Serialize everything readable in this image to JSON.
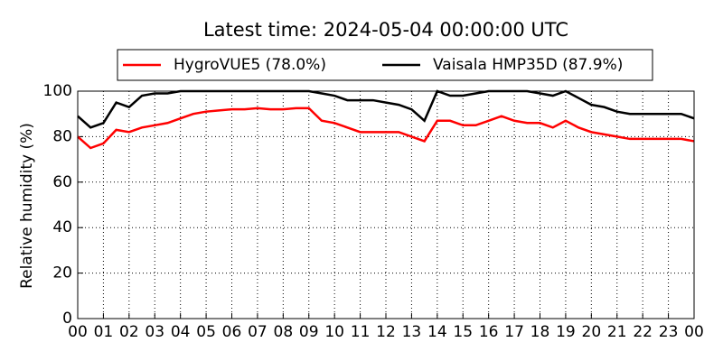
{
  "chart_data": {
    "type": "line",
    "title": "Latest time: 2024-05-04 00:00:00 UTC",
    "y_label": "Relative humidity (%)",
    "x": [
      0,
      0.5,
      1,
      1.5,
      2,
      2.5,
      3,
      3.5,
      4,
      4.5,
      5,
      5.5,
      6,
      6.5,
      7,
      7.5,
      8,
      8.5,
      9,
      9.5,
      10,
      10.5,
      11,
      11.5,
      12,
      12.5,
      13,
      13.5,
      14,
      14.5,
      15,
      15.5,
      16,
      16.5,
      17,
      17.5,
      18,
      18.5,
      19,
      19.5,
      20,
      20.5,
      21,
      21.5,
      22,
      22.5,
      23,
      23.5,
      24
    ],
    "series": [
      {
        "name": "HygroVUE5 (78.0%)",
        "color": "#ff0000",
        "values": [
          80,
          75,
          77,
          83,
          82,
          84,
          85,
          86,
          88,
          90,
          91,
          91.5,
          92,
          92,
          92.5,
          92,
          92,
          92.5,
          92.5,
          87,
          86,
          84,
          82,
          82,
          82,
          82,
          80,
          78,
          87,
          87,
          85,
          85,
          87,
          89,
          87,
          86,
          86,
          84,
          87,
          84,
          82,
          81,
          80,
          79,
          79,
          79,
          79,
          79,
          78
        ]
      },
      {
        "name": "Vaisala HMP35D (87.9%)",
        "color": "#000000",
        "values": [
          89,
          84,
          86,
          95,
          93,
          98,
          99,
          99,
          100,
          100,
          100,
          100,
          100,
          100,
          100,
          100,
          100,
          100,
          100,
          99,
          98,
          96,
          96,
          96,
          95,
          94,
          92,
          87,
          100,
          98,
          98,
          99,
          100,
          100,
          100,
          100,
          99,
          98,
          100,
          97,
          94,
          93,
          91,
          90,
          90,
          90,
          90,
          90,
          88
        ]
      }
    ],
    "xlim": [
      0,
      24
    ],
    "xticks": [
      {
        "value": 0,
        "label": "00"
      },
      {
        "value": 1,
        "label": "01"
      },
      {
        "value": 2,
        "label": "02"
      },
      {
        "value": 3,
        "label": "03"
      },
      {
        "value": 4,
        "label": "04"
      },
      {
        "value": 5,
        "label": "05"
      },
      {
        "value": 6,
        "label": "06"
      },
      {
        "value": 7,
        "label": "07"
      },
      {
        "value": 8,
        "label": "08"
      },
      {
        "value": 9,
        "label": "09"
      },
      {
        "value": 10,
        "label": "10"
      },
      {
        "value": 11,
        "label": "11"
      },
      {
        "value": 12,
        "label": "12"
      },
      {
        "value": 13,
        "label": "13"
      },
      {
        "value": 14,
        "label": "14"
      },
      {
        "value": 15,
        "label": "15"
      },
      {
        "value": 16,
        "label": "16"
      },
      {
        "value": 17,
        "label": "17"
      },
      {
        "value": 18,
        "label": "18"
      },
      {
        "value": 19,
        "label": "19"
      },
      {
        "value": 20,
        "label": "20"
      },
      {
        "value": 21,
        "label": "21"
      },
      {
        "value": 22,
        "label": "22"
      },
      {
        "value": 23,
        "label": "23"
      },
      {
        "value": 24,
        "label": "00"
      }
    ],
    "ylim": [
      0,
      100
    ],
    "yticks": [
      0,
      20,
      40,
      60,
      80,
      100
    ],
    "grid": true,
    "legend": "top"
  }
}
